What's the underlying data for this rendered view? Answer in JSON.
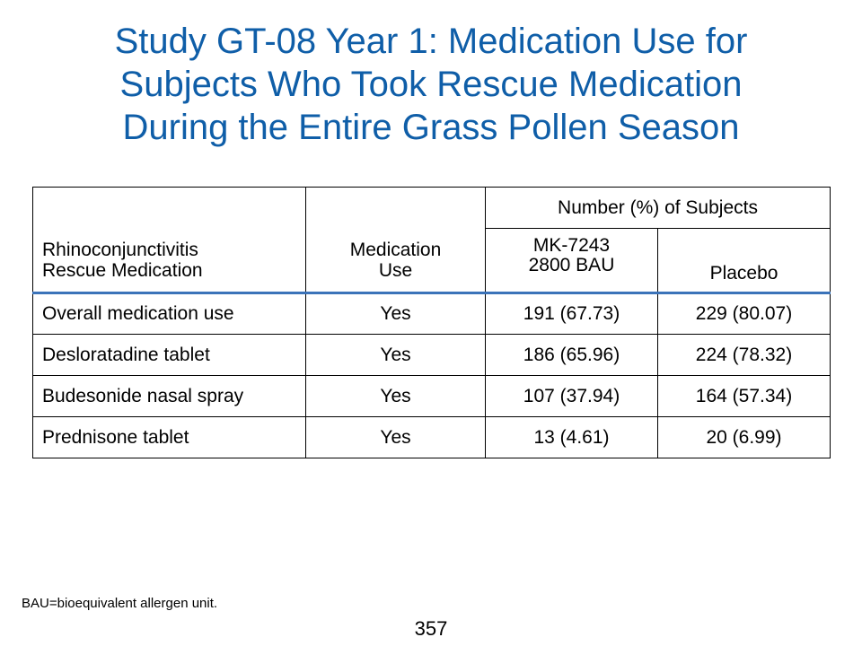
{
  "slide": {
    "title_lines": [
      "Study GT-08 Year 1: Medication Use for",
      "Subjects Who Took Rescue Medication",
      "During the Entire Grass Pollen Season"
    ],
    "footnote": "BAU=bioequivalent allergen unit.",
    "page_number": "357",
    "title_color": "#0f5ea8",
    "header_rule_color": "#3b73b9"
  },
  "table": {
    "headers": {
      "col1_lines": [
        "Rhinoconjunctivitis",
        "Rescue Medication"
      ],
      "col2_lines": [
        "Medication",
        "Use"
      ],
      "group_label": "Number (%) of Subjects",
      "col3_lines": [
        "MK-7243",
        "2800 BAU"
      ],
      "col4": "Placebo"
    },
    "rows": [
      {
        "medication": "Overall medication use",
        "use": "Yes",
        "mk7243": "191 (67.73)",
        "placebo": "229 (80.07)"
      },
      {
        "medication": "Desloratadine tablet",
        "use": "Yes",
        "mk7243": "186 (65.96)",
        "placebo": "224 (78.32)"
      },
      {
        "medication": "Budesonide nasal spray",
        "use": "Yes",
        "mk7243": "107 (37.94)",
        "placebo": "164 (57.34)"
      },
      {
        "medication": "Prednisone tablet",
        "use": "Yes",
        "mk7243": "13 (4.61)",
        "placebo": "20 (6.99)"
      }
    ]
  }
}
